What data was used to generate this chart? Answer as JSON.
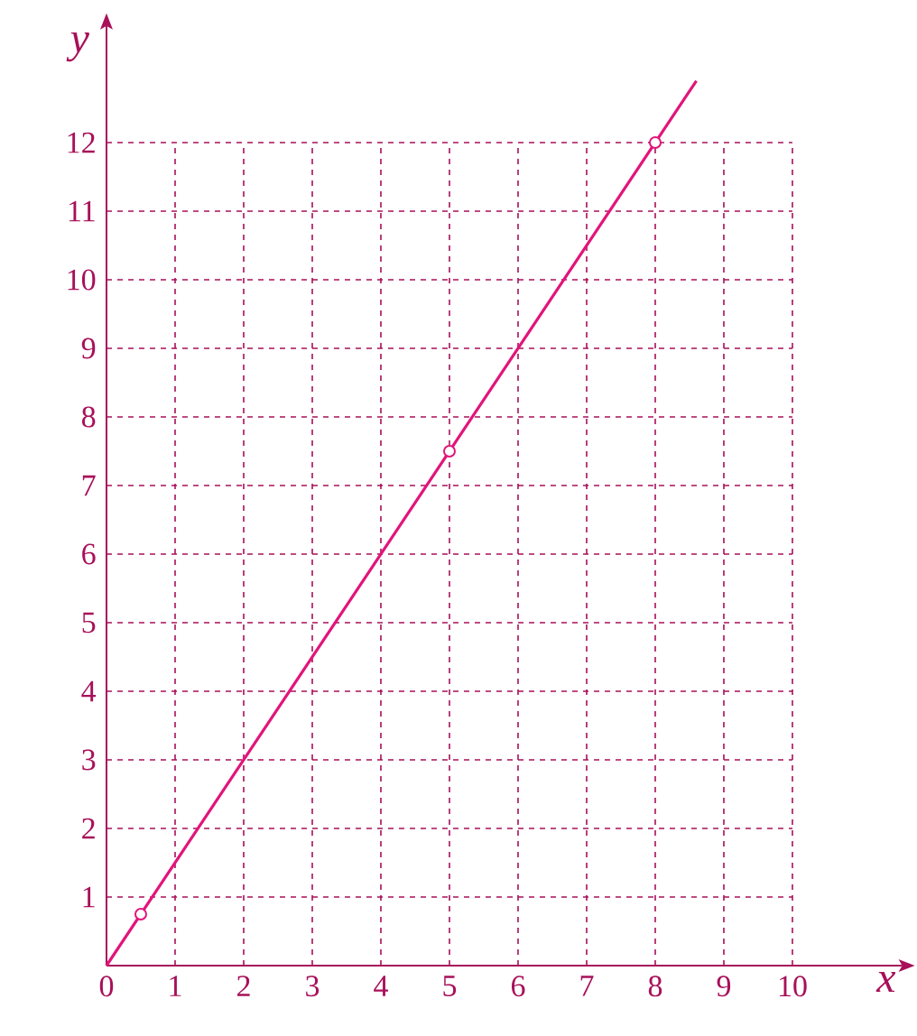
{
  "chart_data": {
    "type": "line",
    "xlabel": "x",
    "ylabel": "y",
    "color": "#a8105a",
    "xlim": [
      0,
      11.6
    ],
    "ylim": [
      0,
      13.7
    ],
    "xticks": [
      0,
      1,
      2,
      3,
      4,
      5,
      6,
      7,
      8,
      9,
      10
    ],
    "yticks": [
      1,
      2,
      3,
      4,
      5,
      6,
      7,
      8,
      9,
      10,
      11,
      12
    ],
    "grid": true,
    "series": [
      {
        "color": "#e2147a",
        "x": [
          0,
          8.6
        ],
        "values": [
          0,
          12.9
        ],
        "marker": "none"
      },
      {
        "type": "scatter",
        "color": "#e2147a",
        "x": [
          0.5,
          5,
          8
        ],
        "values": [
          0.75,
          7.5,
          12
        ],
        "marker": "circle"
      }
    ]
  }
}
